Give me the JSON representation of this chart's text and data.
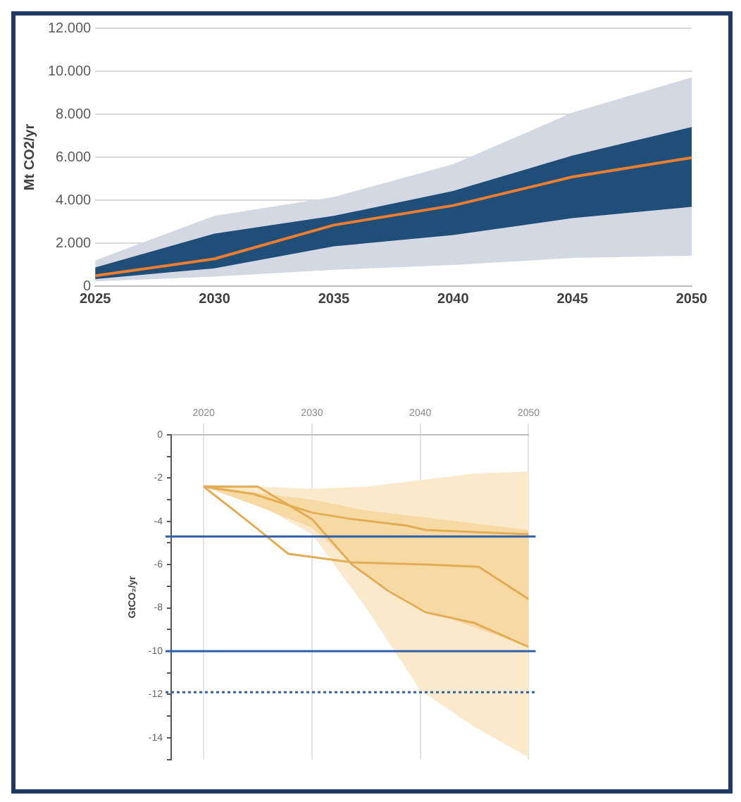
{
  "chart_data": [
    {
      "type": "line",
      "ylabel": "Mt CO2/yr",
      "x": [
        2025,
        2030,
        2035,
        2040,
        2045,
        2050
      ],
      "xlim": [
        2025,
        2050
      ],
      "xticks": [
        2025,
        2030,
        2035,
        2040,
        2045,
        2050
      ],
      "ylim": [
        0,
        12000
      ],
      "yticks": [
        0,
        {
          "value": 2000,
          "label": "2.000"
        },
        {
          "value": 4000,
          "label": "4.000"
        },
        {
          "value": 6000,
          "label": "6.000"
        },
        {
          "value": 8000,
          "label": "8.000"
        },
        {
          "value": 10000,
          "label": "10.000"
        },
        {
          "value": 12000,
          "label": "12.000"
        }
      ],
      "grid": "y",
      "legend": false,
      "series": [
        {
          "type": "area",
          "color": "#d3d8e3",
          "values": [
            null,
            null,
            null,
            null,
            null,
            null
          ],
          "lower": [
            220,
            440,
            760,
            980,
            1310,
            1420
          ],
          "upper": [
            1200,
            3270,
            4150,
            5670,
            8070,
            9710
          ]
        },
        {
          "type": "area",
          "color": "#1f4e79",
          "values": [
            null,
            null,
            null,
            null,
            null,
            null
          ],
          "lower": [
            330,
            830,
            1850,
            2380,
            3160,
            3690
          ],
          "upper": [
            870,
            2440,
            3270,
            4430,
            6070,
            7400
          ]
        },
        {
          "type": "line",
          "color": "#ed7d31",
          "values": [
            480,
            1270,
            2840,
            3750,
            5080,
            5980
          ]
        }
      ]
    },
    {
      "type": "line",
      "ylabel": "GtCO₂/yr",
      "xlim": [
        2017,
        2050
      ],
      "xticks": [
        2020,
        2030,
        2040,
        2050
      ],
      "ylim": [
        -15,
        0
      ],
      "yticks": [
        0,
        {
          "value": -1,
          "label": null
        },
        -2,
        {
          "value": -3,
          "label": null
        },
        -4,
        {
          "value": -5,
          "label": null
        },
        -6,
        {
          "value": -7,
          "label": null
        },
        -8,
        {
          "value": -9,
          "label": null
        },
        -10,
        {
          "value": -11,
          "label": null
        },
        -12,
        {
          "value": -13,
          "label": null
        },
        -14,
        {
          "value": -15,
          "label": null
        }
      ],
      "grid": "x",
      "legend": false,
      "series": [
        {
          "type": "area",
          "color": "#fbe9cc",
          "x": [
            2020,
            2025,
            2030,
            2035,
            2040,
            2045,
            2050
          ],
          "values": [
            null,
            null,
            null,
            null,
            null,
            null,
            null
          ],
          "lower": [
            -2.4,
            -3.2,
            -4.6,
            -8.0,
            -11.8,
            -13.5,
            -14.9
          ],
          "upper": [
            -2.3,
            -2.4,
            -2.5,
            -2.4,
            -2.1,
            -1.8,
            -1.7
          ]
        },
        {
          "type": "area",
          "color": "#f7d9a4",
          "x": [
            2020,
            2025,
            2030,
            2035,
            2040,
            2045,
            2050
          ],
          "values": [
            null,
            null,
            null,
            null,
            null,
            null,
            null
          ],
          "lower": [
            -2.4,
            -3.3,
            -4.3,
            -6.5,
            -8.0,
            -8.9,
            -9.8
          ],
          "upper": [
            -2.3,
            -2.7,
            -3.0,
            -3.5,
            -3.8,
            -4.1,
            -4.4
          ]
        },
        {
          "type": "line",
          "color": "#e2ad55",
          "x": [
            2020,
            2024.6,
            2030,
            2033.7,
            2038.7,
            2040.5,
            2045,
            2050
          ],
          "values": [
            -2.4,
            -2.74,
            -3.6,
            -3.9,
            -4.2,
            -4.4,
            -4.5,
            -4.6
          ]
        },
        {
          "type": "line",
          "color": "#e2ad55",
          "x": [
            2020,
            2024.6,
            2027.8,
            2033.7,
            2040.5,
            2045.4,
            2050
          ],
          "values": [
            -2.4,
            -4.2,
            -5.5,
            -5.9,
            -6.0,
            -6.1,
            -7.6
          ]
        },
        {
          "type": "line",
          "color": "#e2ad55",
          "x": [
            2020,
            2025,
            2030,
            2033.7,
            2037,
            2040.5,
            2045,
            2050
          ],
          "values": [
            -2.4,
            -2.4,
            -3.9,
            -6.0,
            -7.2,
            -8.2,
            -8.7,
            -9.8
          ]
        }
      ],
      "ref_lines": [
        {
          "axis": "y",
          "value": -4.7,
          "color": "#2e5fa8",
          "line_style": "solid"
        },
        {
          "axis": "y",
          "value": -10,
          "color": "#2e5fa8",
          "line_style": "solid"
        },
        {
          "axis": "y",
          "value": -11.9,
          "color": "#2e5fa8",
          "line_style": "dotted"
        }
      ]
    }
  ]
}
